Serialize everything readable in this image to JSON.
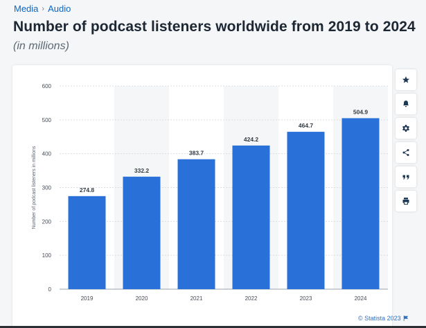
{
  "breadcrumb": {
    "items": [
      "Media",
      "Audio"
    ],
    "separator": "›"
  },
  "title": "Number of podcast listeners worldwide from 2019 to 2024",
  "subtitle": "(in millions)",
  "toolbar": {
    "icons": [
      "star-icon",
      "bell-icon",
      "gear-icon",
      "share-icon",
      "quote-icon",
      "print-icon"
    ]
  },
  "credit": {
    "text": "© Statista 2023"
  },
  "chart_data": {
    "type": "bar",
    "categories": [
      "2019",
      "2020",
      "2021",
      "2022",
      "2023",
      "2024"
    ],
    "values": [
      274.8,
      332.2,
      383.7,
      424.2,
      464.7,
      504.9
    ],
    "value_labels": [
      "274.8",
      "332.2",
      "383.7",
      "424.2",
      "464.7",
      "504.9"
    ],
    "ylabel": "Number of podcast listeners in millions",
    "ylim": [
      0,
      600
    ],
    "yticks": [
      0,
      100,
      200,
      300,
      400,
      500,
      600
    ],
    "bar_color": "#2970d8",
    "grid": true
  }
}
